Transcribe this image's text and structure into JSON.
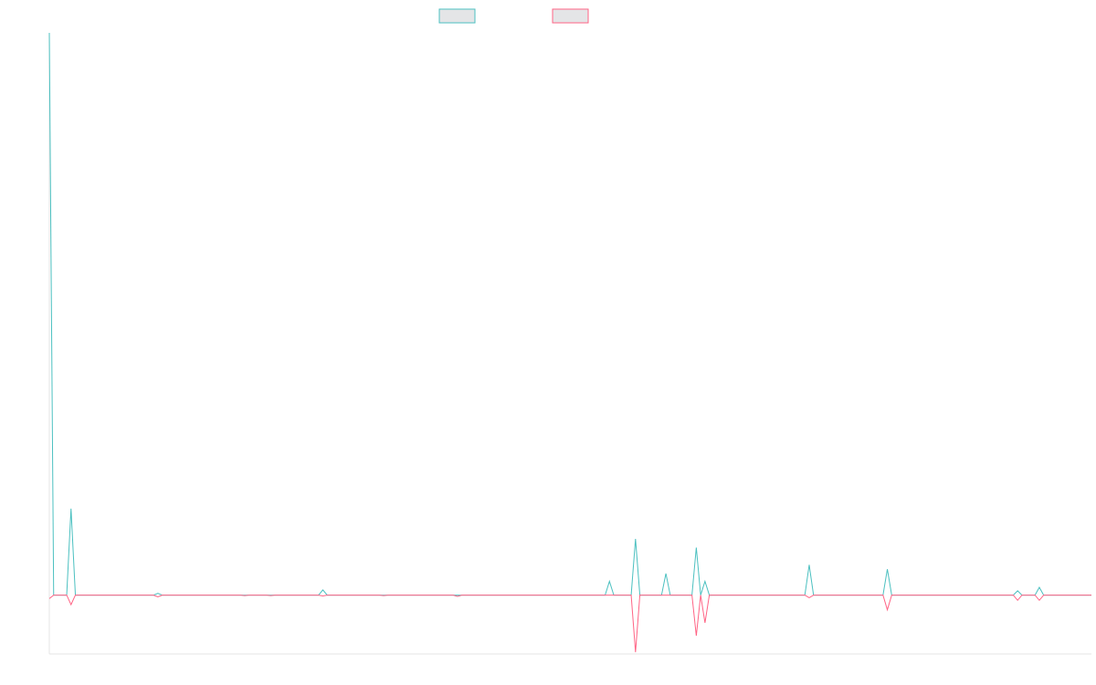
{
  "chart_data": {
    "type": "line",
    "title": "",
    "xlabel": "",
    "ylabel": "",
    "grid": false,
    "legend_position": "top-center",
    "x": [
      0,
      1,
      2,
      3,
      4,
      5,
      6,
      7,
      8,
      9,
      10,
      11,
      12,
      13,
      14,
      15,
      16,
      17,
      18,
      19,
      20,
      21,
      22,
      23,
      24,
      25,
      26,
      27,
      28,
      29,
      30,
      31,
      32,
      33,
      34,
      35,
      36,
      37,
      38,
      39,
      40,
      41,
      42,
      43,
      44,
      45,
      46,
      47,
      48,
      49,
      50,
      51,
      52,
      53,
      54,
      55,
      56,
      57,
      58,
      59,
      60,
      61,
      62,
      63,
      64,
      65,
      66,
      67,
      68,
      69,
      70,
      71,
      72,
      73,
      74,
      75,
      76,
      77,
      78,
      79,
      80,
      81,
      82,
      83,
      84,
      85,
      86,
      87,
      88,
      89,
      90,
      91,
      92,
      93,
      94,
      95,
      96,
      97,
      98,
      99,
      100,
      101,
      102,
      103,
      104,
      105,
      106,
      107,
      108,
      109,
      110,
      111,
      112,
      113,
      114,
      115,
      116,
      117,
      118,
      119,
      120,
      121,
      122,
      123,
      124,
      125,
      126,
      127,
      128,
      129,
      130,
      131,
      132,
      133,
      134,
      135,
      136,
      137,
      138,
      139,
      140,
      141,
      142,
      143,
      144,
      145,
      146,
      147,
      148,
      149,
      150,
      151,
      152,
      153,
      154,
      155,
      156,
      157,
      158,
      159,
      160,
      161,
      162,
      163,
      164,
      165,
      166,
      167,
      168,
      169,
      170,
      171,
      172,
      173,
      174,
      175,
      176,
      177,
      178,
      179,
      180,
      181,
      182,
      183,
      184,
      185,
      186,
      187,
      188,
      189,
      190,
      191,
      192,
      193,
      194,
      195,
      196,
      197,
      198,
      199,
      200,
      201,
      202,
      203,
      204,
      205,
      206,
      207,
      208,
      209,
      210,
      211,
      212,
      213,
      214,
      215,
      216,
      217,
      218,
      219,
      220,
      221,
      222,
      223,
      224,
      225,
      226,
      227,
      228,
      229,
      230,
      231,
      232,
      233,
      234,
      235,
      236,
      237,
      238,
      239,
      240
    ],
    "ylim": [
      -6.8,
      65
    ],
    "series": [
      {
        "name": "",
        "color": "#4bc0c0",
        "fill": "rgba(201,203,207,0.5)",
        "points": [
          [
            0,
            65
          ],
          [
            1,
            0
          ],
          [
            2,
            0
          ],
          [
            3,
            0
          ],
          [
            4,
            0
          ],
          [
            5,
            10
          ],
          [
            6,
            0
          ],
          [
            24,
            0
          ],
          [
            25,
            0.2
          ],
          [
            26,
            0
          ],
          [
            62,
            0
          ],
          [
            63,
            0.6
          ],
          [
            64,
            0
          ],
          [
            128,
            0
          ],
          [
            129,
            1.6
          ],
          [
            130,
            0
          ],
          [
            134,
            0
          ],
          [
            135,
            6.5
          ],
          [
            136,
            0
          ],
          [
            141,
            0
          ],
          [
            142,
            2.5
          ],
          [
            143,
            0
          ],
          [
            148,
            0
          ],
          [
            149,
            5.5
          ],
          [
            150,
            0
          ],
          [
            151,
            1.6
          ],
          [
            152,
            0
          ],
          [
            174,
            0
          ],
          [
            175,
            3.5
          ],
          [
            176,
            0
          ],
          [
            192,
            0
          ],
          [
            193,
            3
          ],
          [
            194,
            0
          ],
          [
            222,
            0
          ],
          [
            223,
            0.5
          ],
          [
            224,
            0
          ],
          [
            227,
            0
          ],
          [
            228,
            0.9
          ],
          [
            229,
            0
          ],
          [
            240,
            0
          ]
        ]
      },
      {
        "name": "",
        "color": "#ff6384",
        "fill": "rgba(201,203,207,0.5)",
        "points": [
          [
            0,
            -0.4
          ],
          [
            1,
            0
          ],
          [
            2,
            0
          ],
          [
            3,
            0
          ],
          [
            4,
            0
          ],
          [
            5,
            -1.1
          ],
          [
            6,
            0
          ],
          [
            24,
            0
          ],
          [
            25,
            -0.2
          ],
          [
            26,
            0
          ],
          [
            44,
            0
          ],
          [
            45,
            -0.05
          ],
          [
            46,
            0
          ],
          [
            50,
            0
          ],
          [
            51,
            -0.05
          ],
          [
            52,
            0
          ],
          [
            62,
            0
          ],
          [
            63,
            -0.1
          ],
          [
            64,
            0
          ],
          [
            76,
            0
          ],
          [
            77,
            -0.05
          ],
          [
            78,
            0
          ],
          [
            93,
            0
          ],
          [
            94,
            -0.15
          ],
          [
            95,
            0
          ],
          [
            134,
            0
          ],
          [
            135,
            -6.6
          ],
          [
            136,
            0
          ],
          [
            148,
            0
          ],
          [
            149,
            -4.7
          ],
          [
            150,
            0
          ],
          [
            151,
            -3.2
          ],
          [
            152,
            0
          ],
          [
            174,
            0
          ],
          [
            175,
            -0.3
          ],
          [
            176,
            0
          ],
          [
            192,
            0
          ],
          [
            193,
            -1.7
          ],
          [
            194,
            0
          ],
          [
            222,
            0
          ],
          [
            223,
            -0.6
          ],
          [
            224,
            0
          ],
          [
            227,
            0
          ],
          [
            228,
            -0.6
          ],
          [
            229,
            0
          ],
          [
            240,
            0
          ]
        ]
      }
    ]
  }
}
